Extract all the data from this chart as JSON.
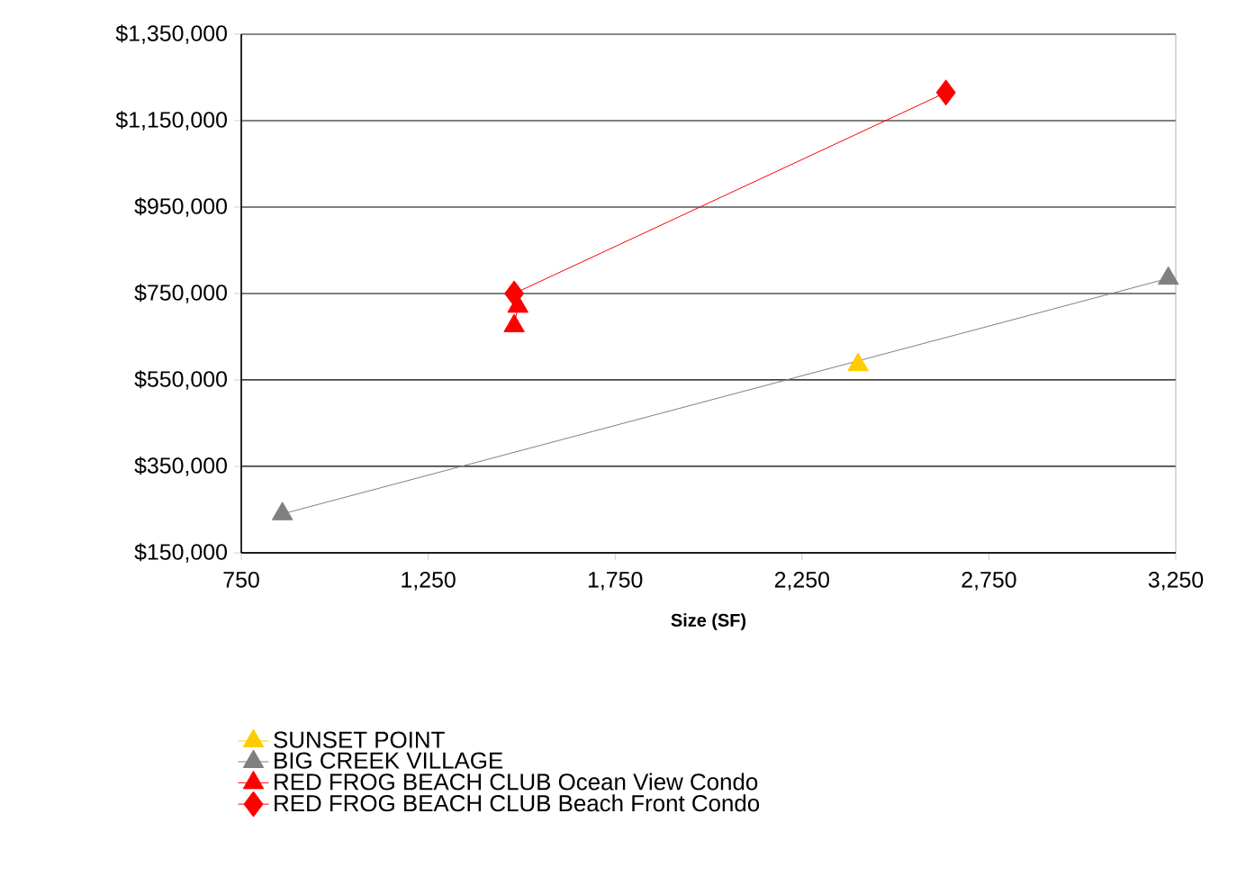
{
  "chart_data": {
    "type": "line",
    "xlabel": "Size (SF)",
    "xlim": [
      750,
      3250
    ],
    "ylim": [
      150000,
      1350000
    ],
    "xticks": [
      {
        "value": 750,
        "label": "750"
      },
      {
        "value": 1250,
        "label": "1,250"
      },
      {
        "value": 1750,
        "label": "1,750"
      },
      {
        "value": 2250,
        "label": "2,250"
      },
      {
        "value": 2750,
        "label": "2,750"
      },
      {
        "value": 3250,
        "label": "3,250"
      }
    ],
    "yticks": [
      {
        "value": 150000,
        "label": "$150,000"
      },
      {
        "value": 350000,
        "label": "$350,000"
      },
      {
        "value": 550000,
        "label": "$550,000"
      },
      {
        "value": 750000,
        "label": "$750,000"
      },
      {
        "value": 950000,
        "label": "$950,000"
      },
      {
        "value": 1150000,
        "label": "$1,150,000"
      },
      {
        "value": 1350000,
        "label": "$1,350,000"
      }
    ],
    "grid": "y",
    "legend": "bottom",
    "line_style": "solid",
    "series": [
      {
        "name": "SUNSET POINT",
        "color": "#ffcc00",
        "marker": "triangle",
        "x": [
          2400
        ],
        "values": [
          585000
        ]
      },
      {
        "name": "BIG CREEK VILLAGE",
        "color": "#808080",
        "marker": "triangle",
        "x": [
          860,
          3230
        ],
        "values": [
          240000,
          785000
        ]
      },
      {
        "name": "RED FROG BEACH CLUB Ocean View Condo",
        "color": "#ff0000",
        "marker": "triangle",
        "x": [
          1490,
          1480
        ],
        "values": [
          720000,
          675000
        ]
      },
      {
        "name": "RED FROG BEACH CLUB Beach Front Condo",
        "color": "#ff0000",
        "marker": "diamond",
        "x": [
          1480,
          2635
        ],
        "values": [
          750000,
          1215000
        ]
      }
    ]
  }
}
